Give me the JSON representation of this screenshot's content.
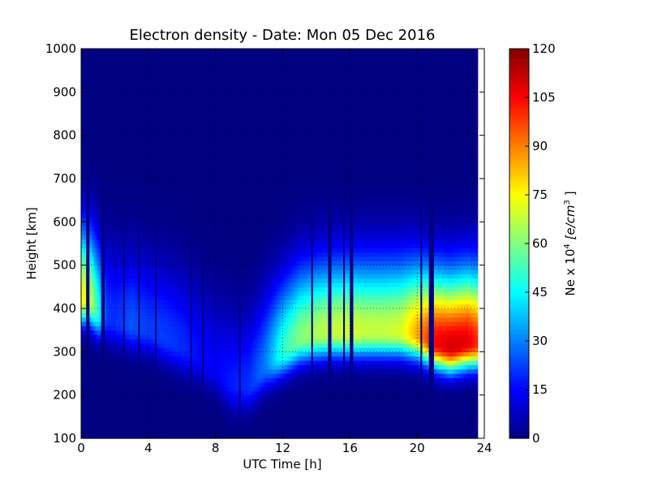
{
  "chart_data": {
    "type": "heatmap",
    "title": "Electron density - Date: Mon 05 Dec 2016",
    "xlabel": "UTC Time [h]",
    "ylabel": "Height [km]",
    "xlim": [
      0,
      24
    ],
    "ylim": [
      100,
      1000
    ],
    "xticks": [
      0,
      4,
      8,
      12,
      16,
      20,
      24
    ],
    "yticks": [
      100,
      200,
      300,
      400,
      500,
      600,
      700,
      800,
      900,
      1000
    ],
    "grid": true,
    "data_end_hour": 23.6,
    "colorbar": {
      "label_prefix": "Ne x 10",
      "label_exp": "4",
      "label_unit": "[e/cm",
      "label_unit_exp": "3",
      "label_close": "]",
      "min": 0,
      "max": 120,
      "ticks": [
        0,
        15,
        30,
        45,
        60,
        75,
        90,
        105,
        120
      ],
      "colormap": "jet"
    },
    "time_points_h": [
      0,
      0.5,
      1,
      1.5,
      2,
      3,
      4,
      5,
      6,
      7,
      8,
      9,
      10,
      11,
      12,
      13,
      14,
      15,
      16,
      17,
      18,
      19,
      20,
      21,
      22,
      23,
      23.6
    ],
    "peak_height_km": [
      420,
      420,
      390,
      380,
      370,
      360,
      350,
      330,
      310,
      290,
      260,
      220,
      220,
      270,
      300,
      330,
      340,
      345,
      345,
      345,
      345,
      345,
      340,
      320,
      310,
      320,
      320
    ],
    "peak_density": [
      75,
      70,
      50,
      22,
      20,
      25,
      22,
      22,
      20,
      16,
      14,
      18,
      20,
      30,
      50,
      60,
      65,
      68,
      70,
      68,
      68,
      70,
      85,
      105,
      110,
      108,
      100
    ],
    "dropout_intervals_h": [
      [
        0.35,
        0.45
      ],
      [
        1.25,
        1.35
      ],
      [
        2.55,
        2.65
      ],
      [
        3.4,
        3.5
      ],
      [
        4.4,
        4.5
      ],
      [
        6.45,
        6.55
      ],
      [
        7.2,
        7.3
      ],
      [
        9.35,
        9.45
      ],
      [
        13.65,
        13.8
      ],
      [
        14.65,
        14.85
      ],
      [
        15.55,
        15.7
      ],
      [
        16.0,
        16.2
      ],
      [
        20.2,
        20.35
      ],
      [
        20.7,
        21.0
      ]
    ]
  }
}
